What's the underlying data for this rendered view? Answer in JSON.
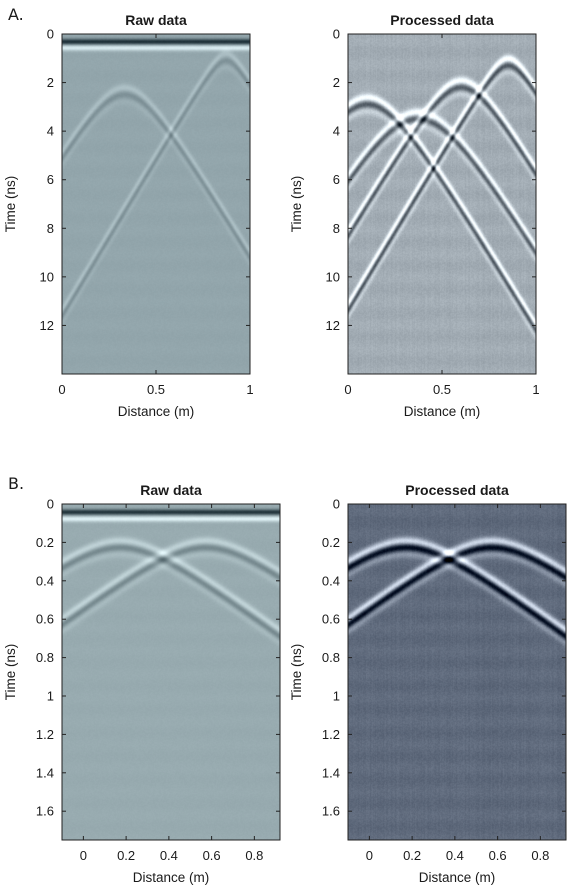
{
  "chart_data": [
    {
      "type": "heatmap",
      "panel_label": "A.",
      "title": "Raw data",
      "xlabel": "Distance (m)",
      "ylabel": "Time (ns)",
      "xlim": [
        0,
        1
      ],
      "ylim": [
        0,
        14
      ],
      "y_reversed": true,
      "xticks": [
        0,
        0.5,
        1
      ],
      "xtick_labels": [
        "0",
        "0.5",
        "1"
      ],
      "yticks": [
        0,
        2,
        4,
        6,
        8,
        10,
        12
      ],
      "ytick_labels": [
        "0",
        "2",
        "4",
        "6",
        "8",
        "10",
        "12"
      ],
      "colormap": "bone",
      "background_color": "#93a6ac",
      "features": {
        "bands": [
          {
            "t": 0.3,
            "width": 0.12,
            "amp": -1.0
          },
          {
            "t": 0.55,
            "width": 0.12,
            "amp": 0.6
          }
        ],
        "hyperbolas": [
          {
            "x0": 0.33,
            "t0": 2.2,
            "k": 12,
            "amp": 0.22
          },
          {
            "x0": 0.87,
            "t0": 0.8,
            "k": 12,
            "amp": 0.22
          }
        ]
      }
    },
    {
      "type": "heatmap",
      "title": "Processed data",
      "xlabel": "Distance (m)",
      "ylabel": "Time (ns)",
      "xlim": [
        0,
        1
      ],
      "ylim": [
        0,
        14
      ],
      "y_reversed": true,
      "xticks": [
        0,
        0.5,
        1
      ],
      "xtick_labels": [
        "0",
        "0.5",
        "1"
      ],
      "yticks": [
        0,
        2,
        4,
        6,
        8,
        10,
        12
      ],
      "ytick_labels": [
        "0",
        "2",
        "4",
        "6",
        "8",
        "10",
        "12"
      ],
      "colormap": "bone",
      "background_color": "#a2acb4",
      "features": {
        "hyperbolas": [
          {
            "x0": 0.1,
            "t0": 2.6,
            "k": 12,
            "amp": 0.85
          },
          {
            "x0": 0.37,
            "t0": 3.2,
            "k": 12,
            "amp": 0.8
          },
          {
            "x0": 0.6,
            "t0": 1.9,
            "k": 12,
            "amp": 0.85
          },
          {
            "x0": 0.85,
            "t0": 1.0,
            "k": 12,
            "amp": 0.9
          }
        ]
      }
    },
    {
      "type": "heatmap",
      "panel_label": "B.",
      "title": "Raw data",
      "xlabel": "Distance (m)",
      "ylabel": "Time (ns)",
      "xlim": [
        -0.1,
        0.92
      ],
      "ylim": [
        0,
        1.75
      ],
      "y_reversed": true,
      "xticks": [
        0,
        0.2,
        0.4,
        0.6,
        0.8
      ],
      "xtick_labels": [
        "0",
        "0.2",
        "0.4",
        "0.6",
        "0.8"
      ],
      "yticks": [
        0,
        0.2,
        0.4,
        0.6,
        0.8,
        1,
        1.2,
        1.4,
        1.6
      ],
      "ytick_labels": [
        "0",
        "0.2",
        "0.4",
        "0.6",
        "0.8",
        "1",
        "1.2",
        "1.4",
        "1.6"
      ],
      "colormap": "bone",
      "background_color": "#98abb0",
      "features": {
        "bands": [
          {
            "t": 0.04,
            "width": 0.015,
            "amp": -1.0
          },
          {
            "t": 0.075,
            "width": 0.015,
            "amp": 0.6
          }
        ],
        "hyperbolas": [
          {
            "x0": 0.17,
            "t0": 0.19,
            "k": 0.4,
            "amp": 0.35
          },
          {
            "x0": 0.57,
            "t0": 0.19,
            "k": 0.4,
            "amp": 0.35
          }
        ]
      }
    },
    {
      "type": "heatmap",
      "title": "Processed data",
      "xlabel": "Distance (m)",
      "ylabel": "Time (ns)",
      "xlim": [
        -0.1,
        0.92
      ],
      "ylim": [
        0,
        1.75
      ],
      "y_reversed": true,
      "xticks": [
        0,
        0.2,
        0.4,
        0.6,
        0.8
      ],
      "xtick_labels": [
        "0",
        "0.2",
        "0.4",
        "0.6",
        "0.8"
      ],
      "yticks": [
        0,
        0.2,
        0.4,
        0.6,
        0.8,
        1,
        1.2,
        1.4,
        1.6
      ],
      "ytick_labels": [
        "0",
        "0.2",
        "0.4",
        "0.6",
        "0.8",
        "1",
        "1.2",
        "1.4",
        "1.6"
      ],
      "colormap": "bone",
      "background_color": "#5f6a7c",
      "features": {
        "hyperbolas": [
          {
            "x0": 0.17,
            "t0": 0.19,
            "k": 0.4,
            "amp": 1.0
          },
          {
            "x0": 0.57,
            "t0": 0.19,
            "k": 0.4,
            "amp": 1.0
          }
        ]
      }
    }
  ]
}
